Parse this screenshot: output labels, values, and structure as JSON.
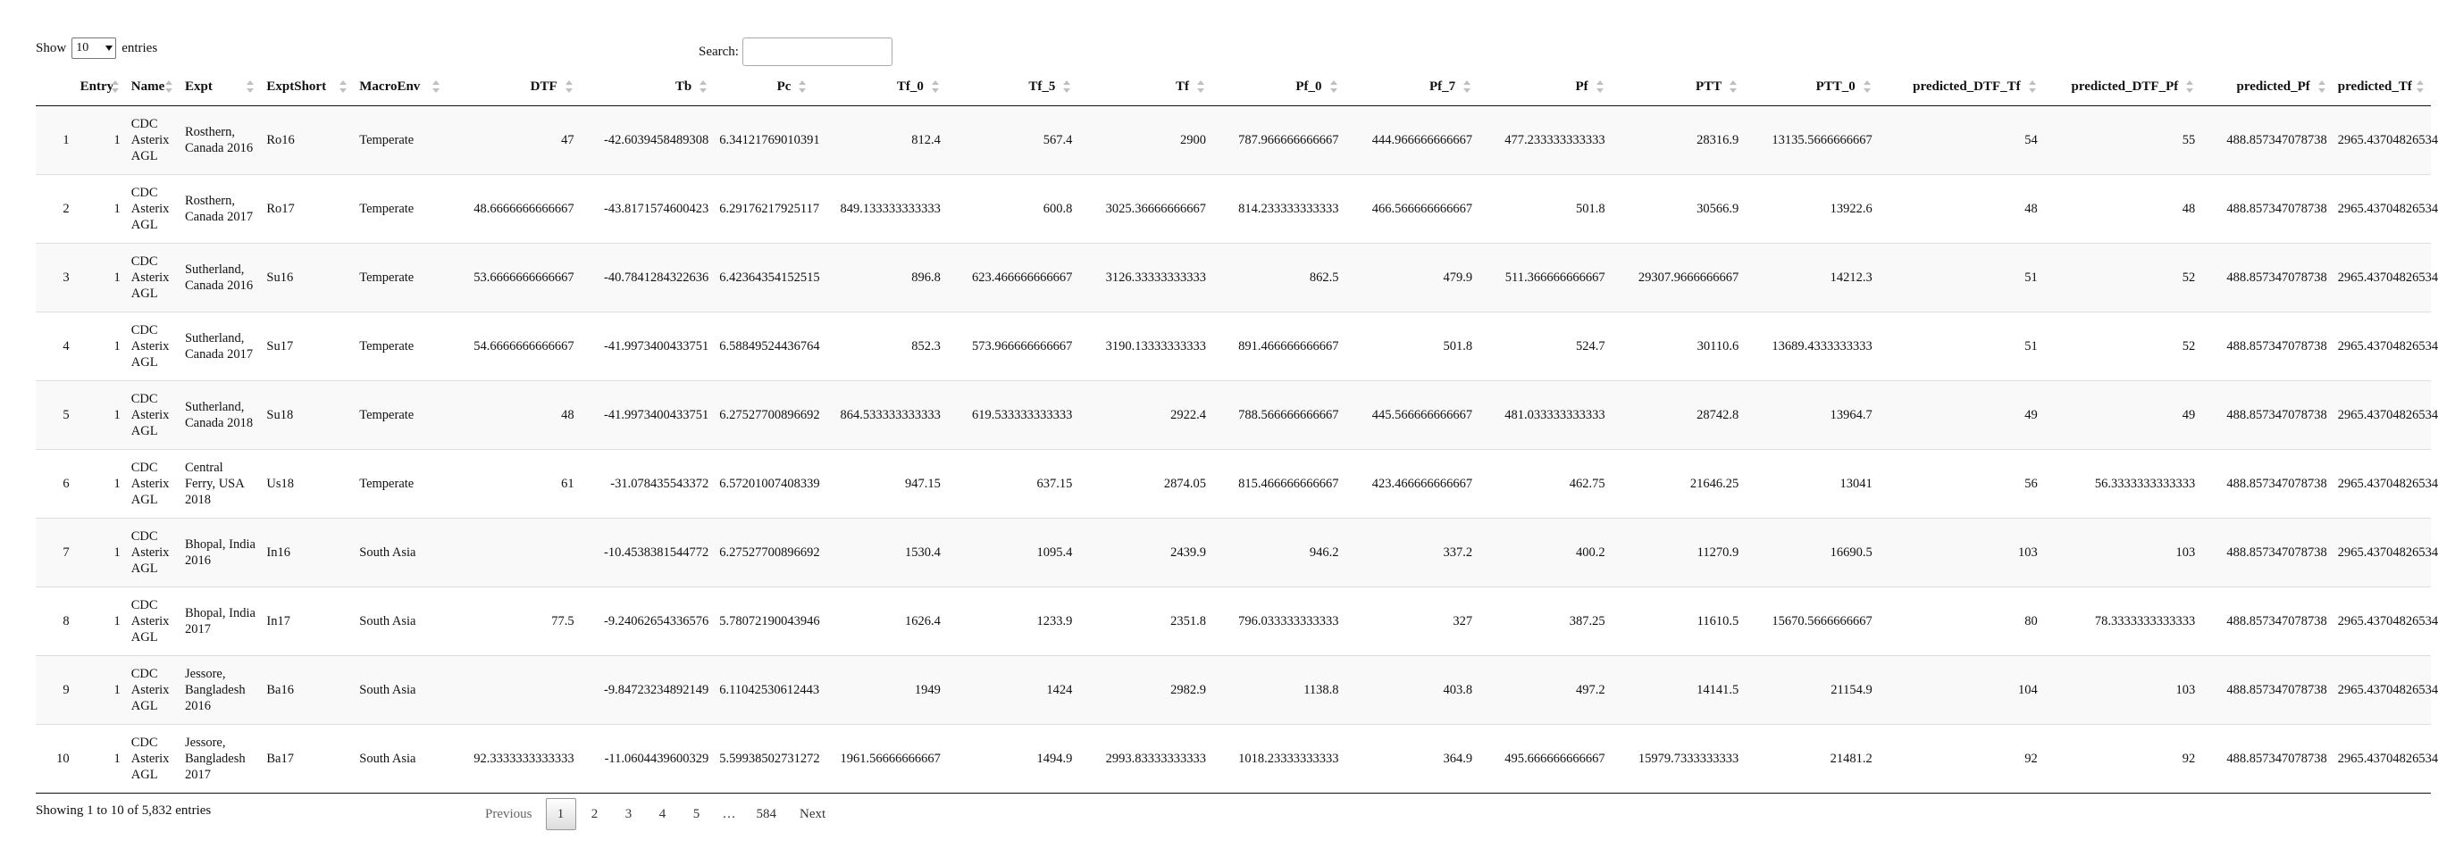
{
  "length_menu": {
    "show_label": "Show",
    "selected": "10",
    "entries_label": "entries"
  },
  "search": {
    "label": "Search:",
    "value": ""
  },
  "columns": [
    {
      "label": "",
      "align": "right"
    },
    {
      "label": "Entry",
      "align": "right"
    },
    {
      "label": "Name",
      "align": "left"
    },
    {
      "label": "Expt",
      "align": "left"
    },
    {
      "label": "ExptShort",
      "align": "left"
    },
    {
      "label": "MacroEnv",
      "align": "left"
    },
    {
      "label": "DTF",
      "align": "right"
    },
    {
      "label": "Tb",
      "align": "right"
    },
    {
      "label": "Pc",
      "align": "right"
    },
    {
      "label": "Tf_0",
      "align": "right"
    },
    {
      "label": "Tf_5",
      "align": "right"
    },
    {
      "label": "Tf",
      "align": "right"
    },
    {
      "label": "Pf_0",
      "align": "right"
    },
    {
      "label": "Pf_7",
      "align": "right"
    },
    {
      "label": "Pf",
      "align": "right"
    },
    {
      "label": "PTT",
      "align": "right"
    },
    {
      "label": "PTT_0",
      "align": "right"
    },
    {
      "label": "predicted_DTF_Tf",
      "align": "right"
    },
    {
      "label": "predicted_DTF_Pf",
      "align": "right"
    },
    {
      "label": "predicted_Pf",
      "align": "right"
    },
    {
      "label": "predicted_Tf",
      "align": "right"
    }
  ],
  "rows": [
    [
      "1",
      "1",
      "CDC Asterix AGL",
      "Rosthern, Canada 2016",
      "Ro16",
      "Temperate",
      "47",
      "-42.6039458489308",
      "6.34121769010391",
      "812.4",
      "567.4",
      "2900",
      "787.966666666667",
      "444.966666666667",
      "477.233333333333",
      "28316.9",
      "13135.5666666667",
      "54",
      "55",
      "488.857347078738",
      "2965.43704826534"
    ],
    [
      "2",
      "1",
      "CDC Asterix AGL",
      "Rosthern, Canada 2017",
      "Ro17",
      "Temperate",
      "48.6666666666667",
      "-43.8171574600423",
      "6.29176217925117",
      "849.133333333333",
      "600.8",
      "3025.36666666667",
      "814.233333333333",
      "466.566666666667",
      "501.8",
      "30566.9",
      "13922.6",
      "48",
      "48",
      "488.857347078738",
      "2965.43704826534"
    ],
    [
      "3",
      "1",
      "CDC Asterix AGL",
      "Sutherland, Canada 2016",
      "Su16",
      "Temperate",
      "53.6666666666667",
      "-40.7841284322636",
      "6.42364354152515",
      "896.8",
      "623.466666666667",
      "3126.33333333333",
      "862.5",
      "479.9",
      "511.366666666667",
      "29307.9666666667",
      "14212.3",
      "51",
      "52",
      "488.857347078738",
      "2965.43704826534"
    ],
    [
      "4",
      "1",
      "CDC Asterix AGL",
      "Sutherland, Canada 2017",
      "Su17",
      "Temperate",
      "54.6666666666667",
      "-41.9973400433751",
      "6.58849524436764",
      "852.3",
      "573.966666666667",
      "3190.13333333333",
      "891.466666666667",
      "501.8",
      "524.7",
      "30110.6",
      "13689.4333333333",
      "51",
      "52",
      "488.857347078738",
      "2965.43704826534"
    ],
    [
      "5",
      "1",
      "CDC Asterix AGL",
      "Sutherland, Canada 2018",
      "Su18",
      "Temperate",
      "48",
      "-41.9973400433751",
      "6.27527700896692",
      "864.533333333333",
      "619.533333333333",
      "2922.4",
      "788.566666666667",
      "445.566666666667",
      "481.033333333333",
      "28742.8",
      "13964.7",
      "49",
      "49",
      "488.857347078738",
      "2965.43704826534"
    ],
    [
      "6",
      "1",
      "CDC Asterix AGL",
      "Central Ferry, USA 2018",
      "Us18",
      "Temperate",
      "61",
      "-31.078435543372",
      "6.57201007408339",
      "947.15",
      "637.15",
      "2874.05",
      "815.466666666667",
      "423.466666666667",
      "462.75",
      "21646.25",
      "13041",
      "56",
      "56.3333333333333",
      "488.857347078738",
      "2965.43704826534"
    ],
    [
      "7",
      "1",
      "CDC Asterix AGL",
      "Bhopal, India 2016",
      "In16",
      "South Asia",
      "",
      "-10.4538381544772",
      "6.27527700896692",
      "1530.4",
      "1095.4",
      "2439.9",
      "946.2",
      "337.2",
      "400.2",
      "11270.9",
      "16690.5",
      "103",
      "103",
      "488.857347078738",
      "2965.43704826534"
    ],
    [
      "8",
      "1",
      "CDC Asterix AGL",
      "Bhopal, India 2017",
      "In17",
      "South Asia",
      "77.5",
      "-9.24062654336576",
      "5.78072190043946",
      "1626.4",
      "1233.9",
      "2351.8",
      "796.033333333333",
      "327",
      "387.25",
      "11610.5",
      "15670.5666666667",
      "80",
      "78.3333333333333",
      "488.857347078738",
      "2965.43704826534"
    ],
    [
      "9",
      "1",
      "CDC Asterix AGL",
      "Jessore, Bangladesh 2016",
      "Ba16",
      "South Asia",
      "",
      "-9.84723234892149",
      "6.11042530612443",
      "1949",
      "1424",
      "2982.9",
      "1138.8",
      "403.8",
      "497.2",
      "14141.5",
      "21154.9",
      "104",
      "103",
      "488.857347078738",
      "2965.43704826534"
    ],
    [
      "10",
      "1",
      "CDC Asterix AGL",
      "Jessore, Bangladesh 2017",
      "Ba17",
      "South Asia",
      "92.3333333333333",
      "-11.0604439600329",
      "5.59938502731272",
      "1961.56666666667",
      "1494.9",
      "2993.83333333333",
      "1018.23333333333",
      "364.9",
      "495.666666666667",
      "15979.7333333333",
      "21481.2",
      "92",
      "92",
      "488.857347078738",
      "2965.43704826534"
    ]
  ],
  "info": "Showing 1 to 10 of 5,832 entries",
  "pagination": {
    "previous": "Previous",
    "pages": [
      "1",
      "2",
      "3",
      "4",
      "5"
    ],
    "ellipsis": "…",
    "last": "584",
    "next": "Next",
    "current": "1"
  },
  "icons": {
    "sort": "sort-both-icon",
    "dropdown": "chevron-down-icon"
  }
}
